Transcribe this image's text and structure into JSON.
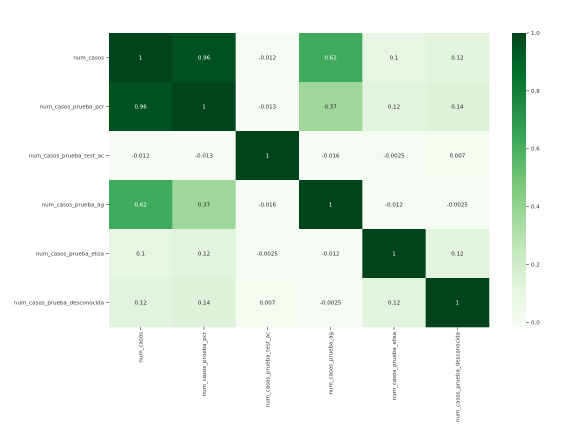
{
  "chart_data": {
    "type": "heatmap",
    "title": "",
    "xlabel": "",
    "ylabel": "",
    "row_labels": [
      "num_casos",
      "num_casos_prueba_pcr",
      "num_casos_prueba_test_ac",
      "num_casos_prueba_ag",
      "num_casos_prueba_elisa",
      "num_casos_prueba_desconocida"
    ],
    "col_labels": [
      "num_casos",
      "num_casos_prueba_pcr",
      "num_casos_prueba_test_ac",
      "num_casos_prueba_ag",
      "num_casos_prueba_elisa",
      "num_casos_prueba_desconocida"
    ],
    "values": [
      [
        1,
        0.96,
        -0.012,
        0.62,
        0.1,
        0.12
      ],
      [
        0.96,
        1,
        -0.013,
        0.37,
        0.12,
        0.14
      ],
      [
        -0.012,
        -0.013,
        1,
        -0.016,
        -0.0025,
        0.007
      ],
      [
        0.62,
        0.37,
        -0.016,
        1,
        -0.012,
        -0.0025
      ],
      [
        0.1,
        0.12,
        -0.0025,
        -0.012,
        1,
        0.12
      ],
      [
        0.12,
        0.14,
        0.007,
        -0.0025,
        0.12,
        1
      ]
    ],
    "annotations": [
      [
        "1",
        "0.96",
        "-0.012",
        "0.62",
        "0.1",
        "0.12"
      ],
      [
        "0.96",
        "1",
        "-0.013",
        "0.37",
        "0.12",
        "0.14"
      ],
      [
        "-0.012",
        "-0.013",
        "1",
        "-0.016",
        "-0.0025",
        "0.007"
      ],
      [
        "0.62",
        "0.37",
        "-0.016",
        "1",
        "-0.012",
        "-0.0025"
      ],
      [
        "0.1",
        "0.12",
        "-0.0025",
        "-0.012",
        "1",
        "0.12"
      ],
      [
        "0.12",
        "0.14",
        "0.007",
        "-0.0025",
        "0.12",
        "1"
      ]
    ],
    "colormap": "Greens",
    "colorbar": {
      "range": [
        -0.016,
        1.0
      ],
      "ticks": [
        0.0,
        0.2,
        0.4,
        0.6,
        0.8,
        1.0
      ],
      "tick_labels": [
        "0.0",
        "0.2",
        "0.4",
        "0.6",
        "0.8",
        "1.0"
      ]
    },
    "grid": false,
    "legend": "colorbar-right"
  }
}
